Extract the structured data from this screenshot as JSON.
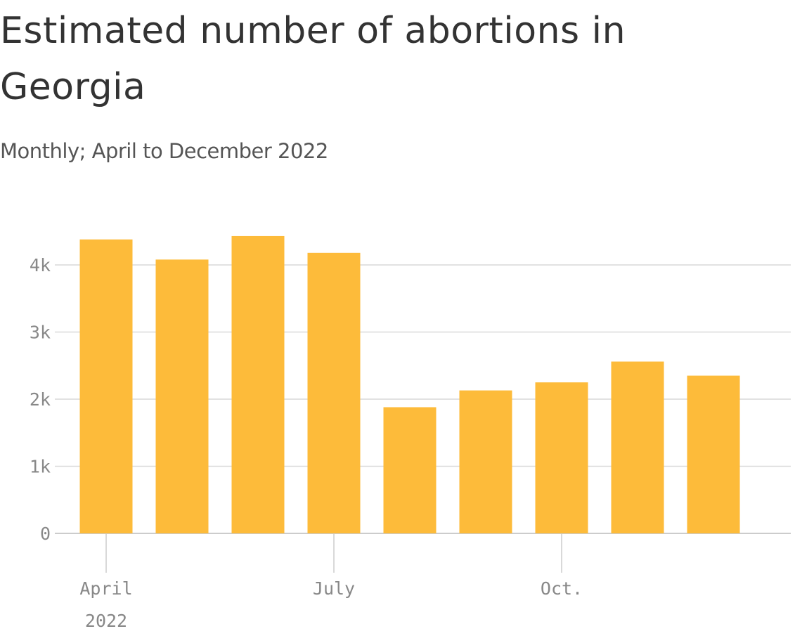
{
  "chart_data": {
    "type": "bar",
    "title": "Estimated number of abortions in Georgia",
    "subtitle": "Monthly; April to December 2022",
    "categories": [
      "April 2022",
      null,
      null,
      "July",
      null,
      null,
      "Oct.",
      null,
      null
    ],
    "values": [
      4380,
      4080,
      4430,
      4180,
      1880,
      2130,
      2250,
      2560,
      2350
    ],
    "color": "#fdbb3a",
    "ylim": [
      0,
      4500
    ],
    "yticks": [
      0,
      {
        "value": 1000,
        "label": "1k"
      },
      {
        "value": 2000,
        "label": "2k"
      },
      {
        "value": 3000,
        "label": "3k"
      },
      {
        "value": 4000,
        "label": "4k"
      }
    ],
    "grid": true
  }
}
